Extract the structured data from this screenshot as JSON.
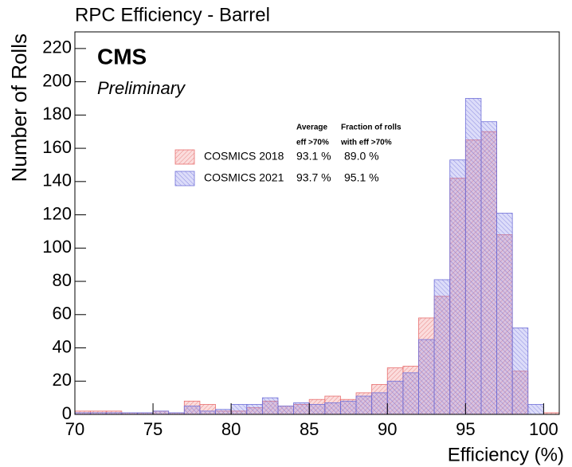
{
  "chart_data": {
    "type": "histogram",
    "title": "RPC Efficiency - Barrel",
    "annotations": [
      "CMS",
      "Preliminary"
    ],
    "x_label": "Efficiency (%)",
    "y_label": "Number of Rolls",
    "bins": [
      70,
      71,
      72,
      73,
      74,
      75,
      76,
      77,
      78,
      79,
      80,
      81,
      82,
      83,
      84,
      85,
      86,
      87,
      88,
      89,
      90,
      91,
      92,
      93,
      94,
      95,
      96,
      97,
      98,
      99,
      100,
      101
    ],
    "series": [
      {
        "name": "COSMICS 2018",
        "color": "#e87070",
        "values": [
          2,
          2,
          2,
          1,
          1,
          2,
          1,
          8,
          6,
          2,
          2,
          4,
          8,
          5,
          6,
          9,
          11,
          9,
          13,
          18,
          28,
          29,
          58,
          71,
          142,
          165,
          170,
          108,
          26,
          0,
          1
        ]
      },
      {
        "name": "COSMICS 2021",
        "color": "#7070d8",
        "values": [
          1,
          1,
          1,
          1,
          1,
          2,
          1,
          5,
          2,
          3,
          6,
          6,
          10,
          5,
          7,
          6,
          7,
          8,
          11,
          13,
          20,
          25,
          45,
          81,
          153,
          190,
          176,
          121,
          52,
          6,
          0
        ]
      }
    ],
    "legend_table": {
      "headers": [
        [
          "Average",
          "eff >70%"
        ],
        [
          "Fraction of rolls",
          "with eff >70%"
        ]
      ],
      "rows": [
        [
          "93.1 %",
          "89.0 %"
        ],
        [
          "93.7 %",
          "95.1 %"
        ]
      ]
    },
    "xlim": [
      70,
      101
    ],
    "ylim": [
      0,
      230
    ],
    "xticks": [
      70,
      75,
      80,
      85,
      90,
      95,
      100
    ],
    "yticks": [
      0,
      20,
      40,
      60,
      80,
      100,
      120,
      140,
      160,
      180,
      200,
      220
    ]
  }
}
